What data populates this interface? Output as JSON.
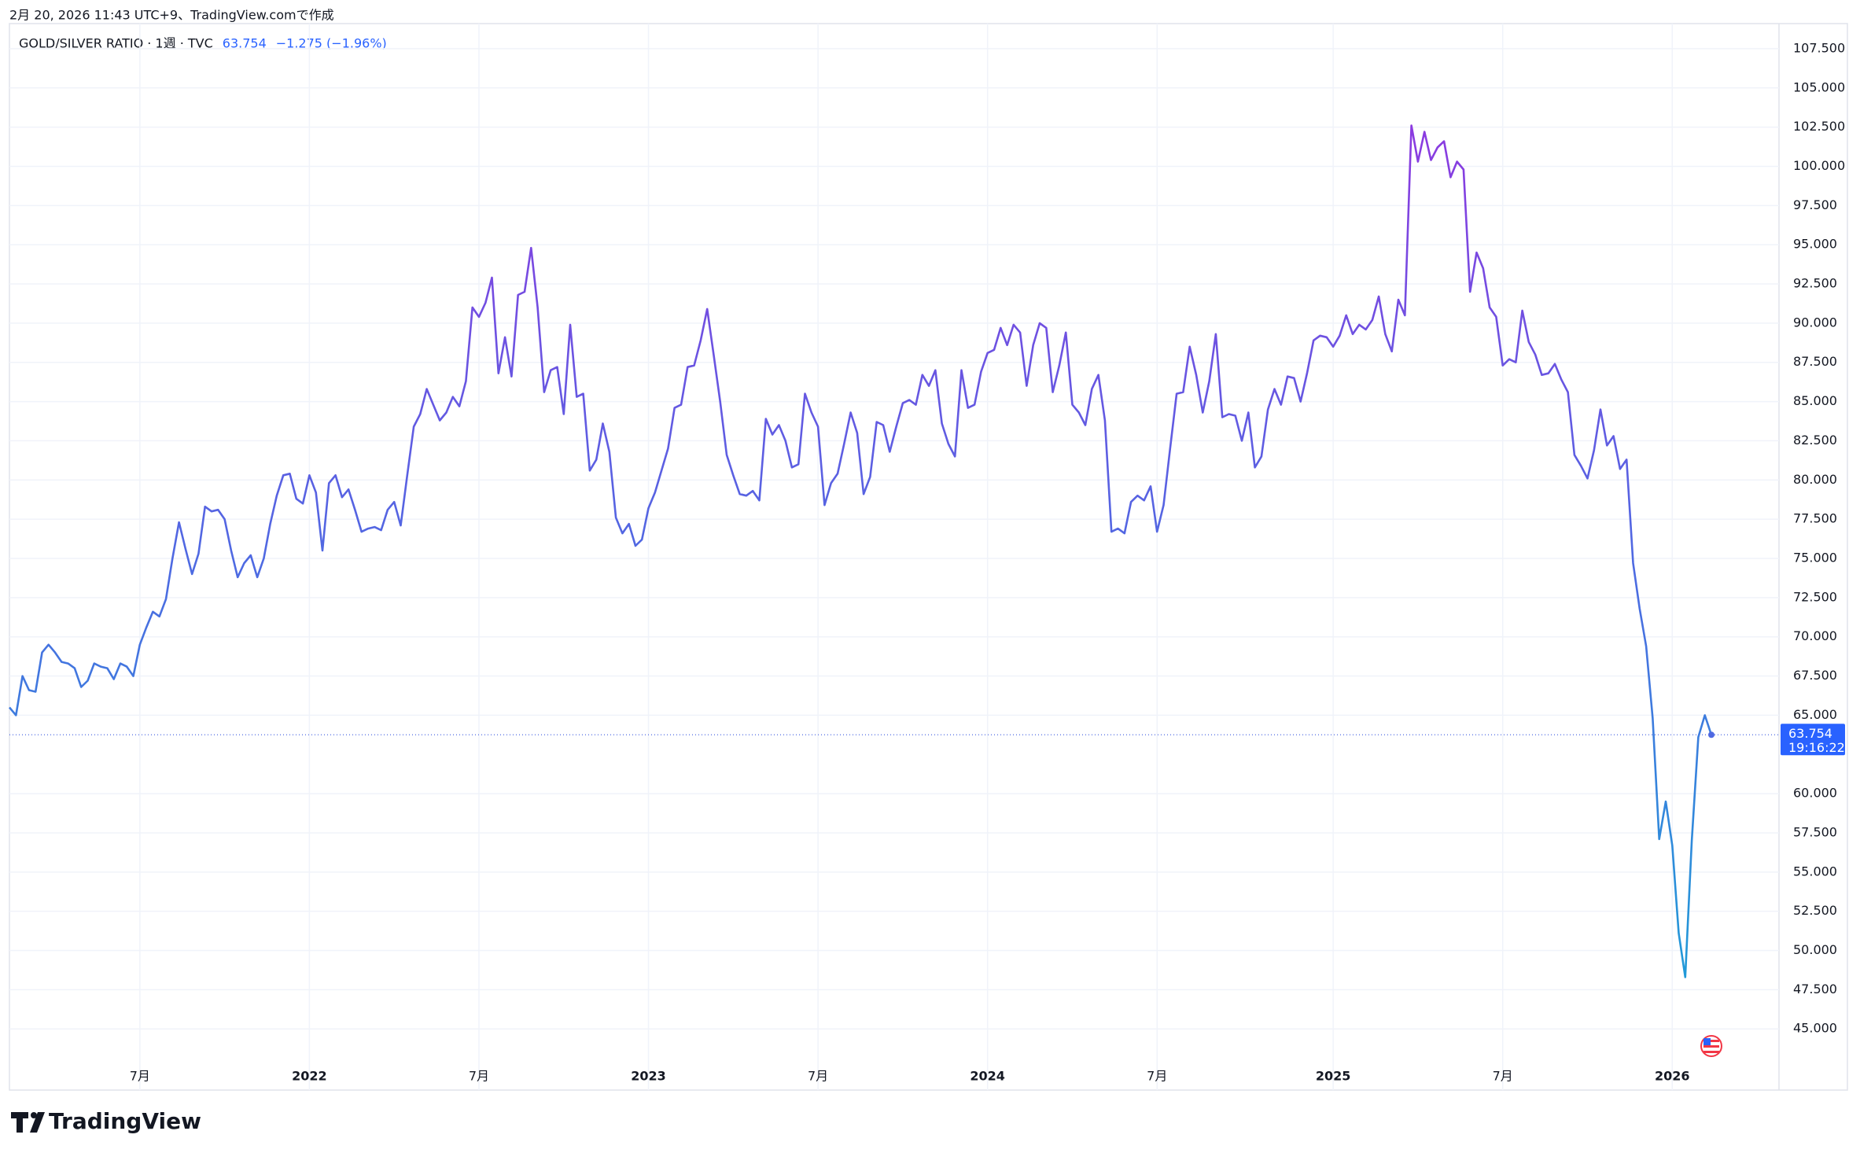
{
  "header": {
    "created": "2月 20, 2026 11:43 UTC+9、TradingView.comで作成",
    "change": "−1.275 (−1.96%)",
    "countdown": "19:16:22",
    "brand": "TradingView"
  },
  "chart_data": {
    "type": "line",
    "categories": [
      null,
      null,
      null,
      null,
      null,
      null,
      null,
      null,
      null,
      null,
      null,
      null,
      null,
      null,
      null,
      null,
      null,
      null,
      null,
      null,
      "7月",
      null,
      null,
      null,
      null,
      null,
      null,
      null,
      null,
      null,
      null,
      null,
      null,
      null,
      null,
      null,
      null,
      null,
      null,
      null,
      null,
      null,
      null,
      null,
      null,
      null,
      "2022",
      null,
      null,
      null,
      null,
      null,
      null,
      null,
      null,
      null,
      null,
      null,
      null,
      null,
      null,
      null,
      null,
      null,
      null,
      null,
      null,
      null,
      null,
      null,
      null,
      null,
      "7月",
      null,
      null,
      null,
      null,
      null,
      null,
      null,
      null,
      null,
      null,
      null,
      null,
      null,
      null,
      null,
      null,
      null,
      null,
      null,
      null,
      null,
      null,
      null,
      null,
      null,
      "2023",
      null,
      null,
      null,
      null,
      null,
      null,
      null,
      null,
      null,
      null,
      null,
      null,
      null,
      null,
      null,
      null,
      null,
      null,
      null,
      null,
      null,
      null,
      null,
      null,
      null,
      "7月",
      null,
      null,
      null,
      null,
      null,
      null,
      null,
      null,
      null,
      null,
      null,
      null,
      null,
      null,
      null,
      null,
      null,
      null,
      null,
      null,
      null,
      null,
      null,
      null,
      null,
      "2024",
      null,
      null,
      null,
      null,
      null,
      null,
      null,
      null,
      null,
      null,
      null,
      null,
      null,
      null,
      null,
      null,
      null,
      null,
      null,
      null,
      null,
      null,
      null,
      null,
      null,
      "7月",
      null,
      null,
      null,
      null,
      null,
      null,
      null,
      null,
      null,
      null,
      null,
      null,
      null,
      null,
      null,
      null,
      null,
      null,
      null,
      null,
      null,
      null,
      null,
      null,
      null,
      null,
      "2025",
      null,
      null,
      null,
      null,
      null,
      null,
      null,
      null,
      null,
      null,
      null,
      null,
      null,
      null,
      null,
      null,
      null,
      null,
      null,
      null,
      null,
      null,
      null,
      null,
      null,
      "7月",
      null,
      null,
      null,
      null,
      null,
      null,
      null,
      null,
      null,
      null,
      null,
      null,
      null,
      null,
      null,
      null,
      null,
      null,
      null,
      null,
      null,
      null,
      null,
      null,
      null,
      "2026",
      null,
      null,
      null,
      null,
      null,
      null
    ],
    "series": [
      {
        "name": "GOLD/SILVER RATIO · 1週 · TVC",
        "gradient": [
          "#14a7d5",
          "#4f69e2",
          "#9a2fe0"
        ],
        "values": [
          65.5,
          65,
          67.5,
          66.6,
          66.5,
          69,
          69.5,
          69,
          68.4,
          68.3,
          68,
          66.8,
          67.2,
          68.3,
          68.1,
          68,
          67.3,
          68.3,
          68.1,
          67.5,
          69.5,
          70.6,
          71.6,
          71.3,
          72.4,
          75,
          77.3,
          75.6,
          74,
          75.3,
          78.3,
          78,
          78.1,
          77.5,
          75.5,
          73.8,
          74.7,
          75.2,
          73.8,
          75,
          77.2,
          79,
          80.3,
          80.4,
          78.8,
          78.5,
          80.3,
          79.2,
          75.5,
          79.8,
          80.3,
          78.9,
          79.4,
          78.1,
          76.7,
          76.9,
          77,
          76.8,
          78.1,
          78.6,
          77.1,
          80.3,
          83.4,
          84.2,
          85.8,
          84.8,
          83.8,
          84.3,
          85.3,
          84.7,
          86.3,
          91,
          90.4,
          91.3,
          92.9,
          86.8,
          89.1,
          86.6,
          91.8,
          92,
          94.8,
          91,
          85.6,
          87,
          87.2,
          84.2,
          89.9,
          85.3,
          85.5,
          80.6,
          81.3,
          83.6,
          81.8,
          77.6,
          76.6,
          77.2,
          75.8,
          76.2,
          78.2,
          79.2,
          80.6,
          82,
          84.6,
          84.8,
          87.2,
          87.3,
          88.9,
          90.9,
          88,
          85,
          81.6,
          80.3,
          79.1,
          79,
          79.3,
          78.7,
          83.9,
          82.9,
          83.5,
          82.5,
          80.8,
          81,
          85.5,
          84.3,
          83.4,
          78.4,
          79.8,
          80.4,
          82.3,
          84.3,
          83,
          79.1,
          80.2,
          83.7,
          83.5,
          81.8,
          83.4,
          84.9,
          85.1,
          84.8,
          86.7,
          86,
          87,
          83.6,
          82.3,
          81.5,
          87,
          84.6,
          84.8,
          86.9,
          88.1,
          88.3,
          89.7,
          88.6,
          89.9,
          89.4,
          86,
          88.6,
          90,
          89.7,
          85.6,
          87.3,
          89.4,
          84.8,
          84.3,
          83.5,
          85.8,
          86.7,
          83.8,
          76.7,
          76.9,
          76.6,
          78.6,
          79,
          78.7,
          79.6,
          76.7,
          78.4,
          82,
          85.5,
          85.6,
          88.5,
          86.7,
          84.3,
          86.3,
          89.3,
          84,
          84.2,
          84.1,
          82.5,
          84.3,
          80.8,
          81.5,
          84.5,
          85.8,
          84.8,
          86.6,
          86.5,
          85,
          86.8,
          88.9,
          89.2,
          89.1,
          88.5,
          89.2,
          90.5,
          89.3,
          89.9,
          89.6,
          90.2,
          91.7,
          89.3,
          88.2,
          91.5,
          90.5,
          102.6,
          100.3,
          102.2,
          100.4,
          101.2,
          101.6,
          99.3,
          100.3,
          99.8,
          92,
          94.5,
          93.5,
          91,
          90.4,
          87.3,
          87.7,
          87.5,
          90.8,
          88.8,
          88,
          86.7,
          86.8,
          87.4,
          86.4,
          85.6,
          81.6,
          80.9,
          80.1,
          81.9,
          84.5,
          82.2,
          82.8,
          80.7,
          81.3,
          74.7,
          71.8,
          69.4,
          64.8,
          57.1,
          59.5,
          56.7,
          51.1,
          48.3,
          57,
          63.6,
          65,
          63.754
        ]
      }
    ],
    "ylim": [
      41.1,
      109.1
    ],
    "yticks": [
      {
        "value": 45,
        "label": "45.000"
      },
      {
        "value": 47.5,
        "label": "47.500"
      },
      {
        "value": 50,
        "label": "50.000"
      },
      {
        "value": 52.5,
        "label": "52.500"
      },
      {
        "value": 55,
        "label": "55.000"
      },
      {
        "value": 57.5,
        "label": "57.500"
      },
      {
        "value": 60,
        "label": "60.000"
      },
      {
        "value": 65,
        "label": "65.000"
      },
      {
        "value": 67.5,
        "label": "67.500"
      },
      {
        "value": 70,
        "label": "70.000"
      },
      {
        "value": 72.5,
        "label": "72.500"
      },
      {
        "value": 75,
        "label": "75.000"
      },
      {
        "value": 77.5,
        "label": "77.500"
      },
      {
        "value": 80,
        "label": "80.000"
      },
      {
        "value": 82.5,
        "label": "82.500"
      },
      {
        "value": 85,
        "label": "85.000"
      },
      {
        "value": 87.5,
        "label": "87.500"
      },
      {
        "value": 90,
        "label": "90.000"
      },
      {
        "value": 92.5,
        "label": "92.500"
      },
      {
        "value": 95,
        "label": "95.000"
      },
      {
        "value": 97.5,
        "label": "97.500"
      },
      {
        "value": 100,
        "label": "100.000"
      },
      {
        "value": 102.5,
        "label": "102.500"
      },
      {
        "value": 105,
        "label": "105.000"
      },
      {
        "value": 107.5,
        "label": "107.500"
      }
    ],
    "grid": true,
    "price_tag_color": "#2962ff"
  }
}
